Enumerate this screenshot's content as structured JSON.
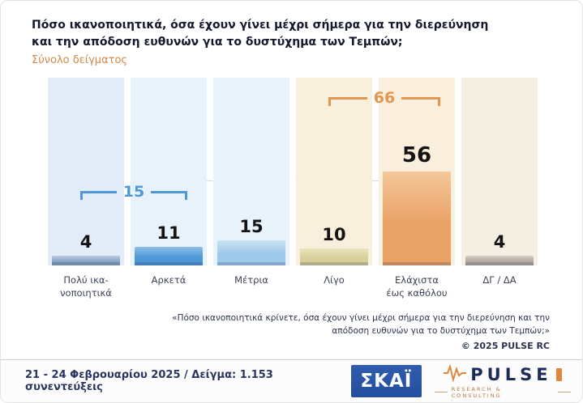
{
  "header": {
    "title": "Πόσο ικανοποιητικά, όσα έχουν γίνει μέχρι σήμερα για την διερεύνηση\nκαι την απόδοση ευθυνών για το δυστύχημα των Τεμπών;",
    "subtitle": "Σύνολο δείγματος"
  },
  "chart_data": {
    "type": "bar",
    "title": "Πόσο ικανοποιητικά, όσα έχουν γίνει μέχρι σήμερα για την διερεύνηση και την απόδοση ευθυνών για το δυστύχημα των Τεμπών;",
    "categories": [
      "Πολύ ικα-\nνοποιητικά",
      "Αρκετά",
      "Μέτρια",
      "Λίγο",
      "Ελάχιστα\nέως καθόλου",
      "ΔΓ / ΔΑ"
    ],
    "values": [
      4,
      11,
      15,
      10,
      56,
      4
    ],
    "ylim": [
      0,
      60
    ],
    "xlabel": "",
    "ylabel": "",
    "legend": false,
    "grid": false,
    "bar_colors": [
      "#8aa6c6",
      "#4f97d8",
      "#9ec9ea",
      "#d8d09a",
      "#e9a266",
      "#b3ab9e"
    ],
    "bar_colors_light": [
      "#bccde0",
      "#8fc0e8",
      "#c8e2f4",
      "#ebe5bc",
      "#f4c79a",
      "#d6d0c6"
    ],
    "column_bg": [
      "#e2edf9",
      "#e8f2fb",
      "#e9f3fb",
      "#f8f0dd",
      "#faeedd",
      "#f5efe3"
    ],
    "groups": [
      {
        "label": "15",
        "color": "#4f97d8",
        "members": [
          "Πολύ ικανοποιητικά",
          "Αρκετά"
        ]
      },
      {
        "label": "66",
        "color": "#e3964f",
        "members": [
          "Λίγο",
          "Ελάχιστα έως καθόλου"
        ]
      }
    ]
  },
  "watermark": {
    "name": "PULSE",
    "tagline": "RESEARCH & CONSULTING"
  },
  "footnote": {
    "quote": "«Πόσο ικανοποιητικά κρίνετε, όσα έχουν γίνει μέχρι σήμερα για την διερεύνηση και την\nαπόδοση ευθυνών για το δυστύχημα των Τεμπών;»",
    "copyright": "©  2025  PULSE RC"
  },
  "footer": {
    "fieldwork": "21 - 24 Φεβρουαρίου 2025  /  Δείγμα:  1.153 συνεντεύξεις",
    "skai_logo": "ΣΚΑΪ",
    "pulse_logo": "PULSE",
    "pulse_tagline": "RESEARCH & CONSULTING"
  }
}
